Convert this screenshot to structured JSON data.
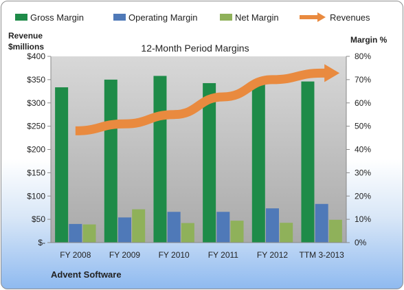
{
  "chart_data": {
    "type": "bar",
    "title": "12-Month Period Margins",
    "subtitle": "Advent Software",
    "left_axis": {
      "label_line1": "Revenue",
      "label_line2": "$millions",
      "ylim": [
        0,
        400
      ],
      "ticks": [
        "$-",
        "$50",
        "$100",
        "$150",
        "$200",
        "$250",
        "$300",
        "$350",
        "$400"
      ]
    },
    "right_axis": {
      "label": "Margin %",
      "ylim": [
        0,
        80
      ],
      "ticks": [
        "0%",
        "10%",
        "20%",
        "30%",
        "40%",
        "50%",
        "60%",
        "70%",
        "80%"
      ]
    },
    "categories": [
      "FY 2008",
      "FY 2009",
      "FY 2010",
      "FY 2011",
      "FY 2012",
      "TTM 3-2013"
    ],
    "series": [
      {
        "name": "Gross Margin",
        "kind": "bar",
        "axis": "right",
        "color": "#1e8b48",
        "values": [
          66.7,
          70.0,
          71.6,
          68.5,
          68.5,
          69.2
        ]
      },
      {
        "name": "Operating Margin",
        "kind": "bar",
        "axis": "right",
        "color": "#4f79b8",
        "values": [
          8.0,
          10.8,
          13.2,
          13.2,
          14.7,
          16.6
        ]
      },
      {
        "name": "Net Margin",
        "kind": "bar",
        "axis": "right",
        "color": "#8fb15a",
        "values": [
          7.8,
          14.3,
          8.4,
          9.4,
          8.5,
          9.8
        ]
      },
      {
        "name": "Revenues",
        "kind": "line",
        "axis": "left",
        "color": "#e98a3f",
        "values": [
          240,
          255,
          275,
          313,
          350,
          364
        ]
      }
    ],
    "grid": false,
    "legend_position": "top"
  }
}
